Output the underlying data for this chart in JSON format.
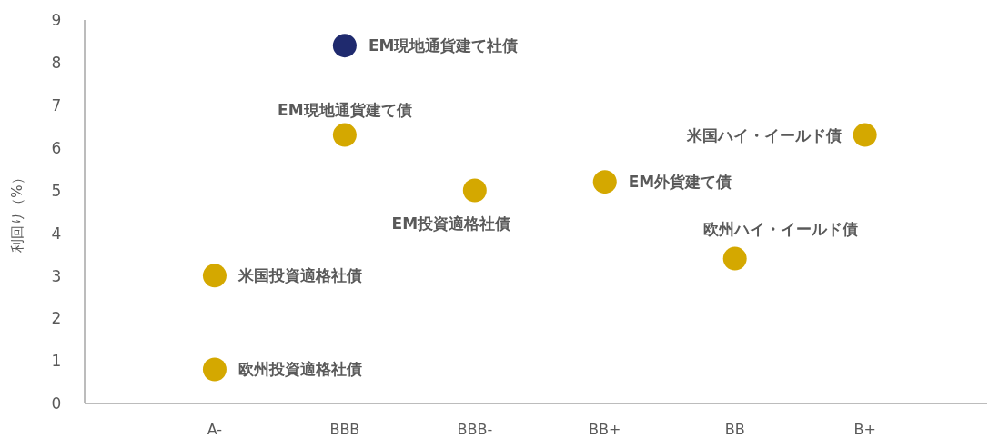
{
  "chart_data": {
    "type": "scatter",
    "ylabel": "利回り（%）",
    "categories": [
      "A-",
      "BBB",
      "BBB-",
      "BB+",
      "BB",
      "B+"
    ],
    "ylim": [
      0,
      9
    ],
    "yticks": [
      0,
      1,
      2,
      3,
      4,
      5,
      6,
      7,
      8,
      9
    ],
    "series": [
      {
        "name": "米国投資適格社債",
        "color": "#d4a800",
        "x": [
          "A-"
        ],
        "values": [
          3.0
        ]
      },
      {
        "name": "欧州投資適格社債",
        "color": "#d4a800",
        "x": [
          "A-"
        ],
        "values": [
          0.8
        ]
      },
      {
        "name": "EM現地通貨建て社債",
        "color": "#1f2a6e",
        "x": [
          "BBB"
        ],
        "values": [
          8.4
        ]
      },
      {
        "name": "EM現地通貨建て債",
        "color": "#d4a800",
        "x": [
          "BBB"
        ],
        "values": [
          6.3
        ]
      },
      {
        "name": "EM投資適格社債",
        "color": "#d4a800",
        "x": [
          "BBB-"
        ],
        "values": [
          5.0
        ]
      },
      {
        "name": "EM外貨建て債",
        "color": "#d4a800",
        "x": [
          "BB+"
        ],
        "values": [
          5.2
        ]
      },
      {
        "name": "欧州ハイ・イールド債",
        "color": "#d4a800",
        "x": [
          "BB"
        ],
        "values": [
          3.4
        ]
      },
      {
        "name": "米国ハイ・イールド債",
        "color": "#d4a800",
        "x": [
          "B+"
        ],
        "values": [
          6.3
        ]
      }
    ]
  }
}
